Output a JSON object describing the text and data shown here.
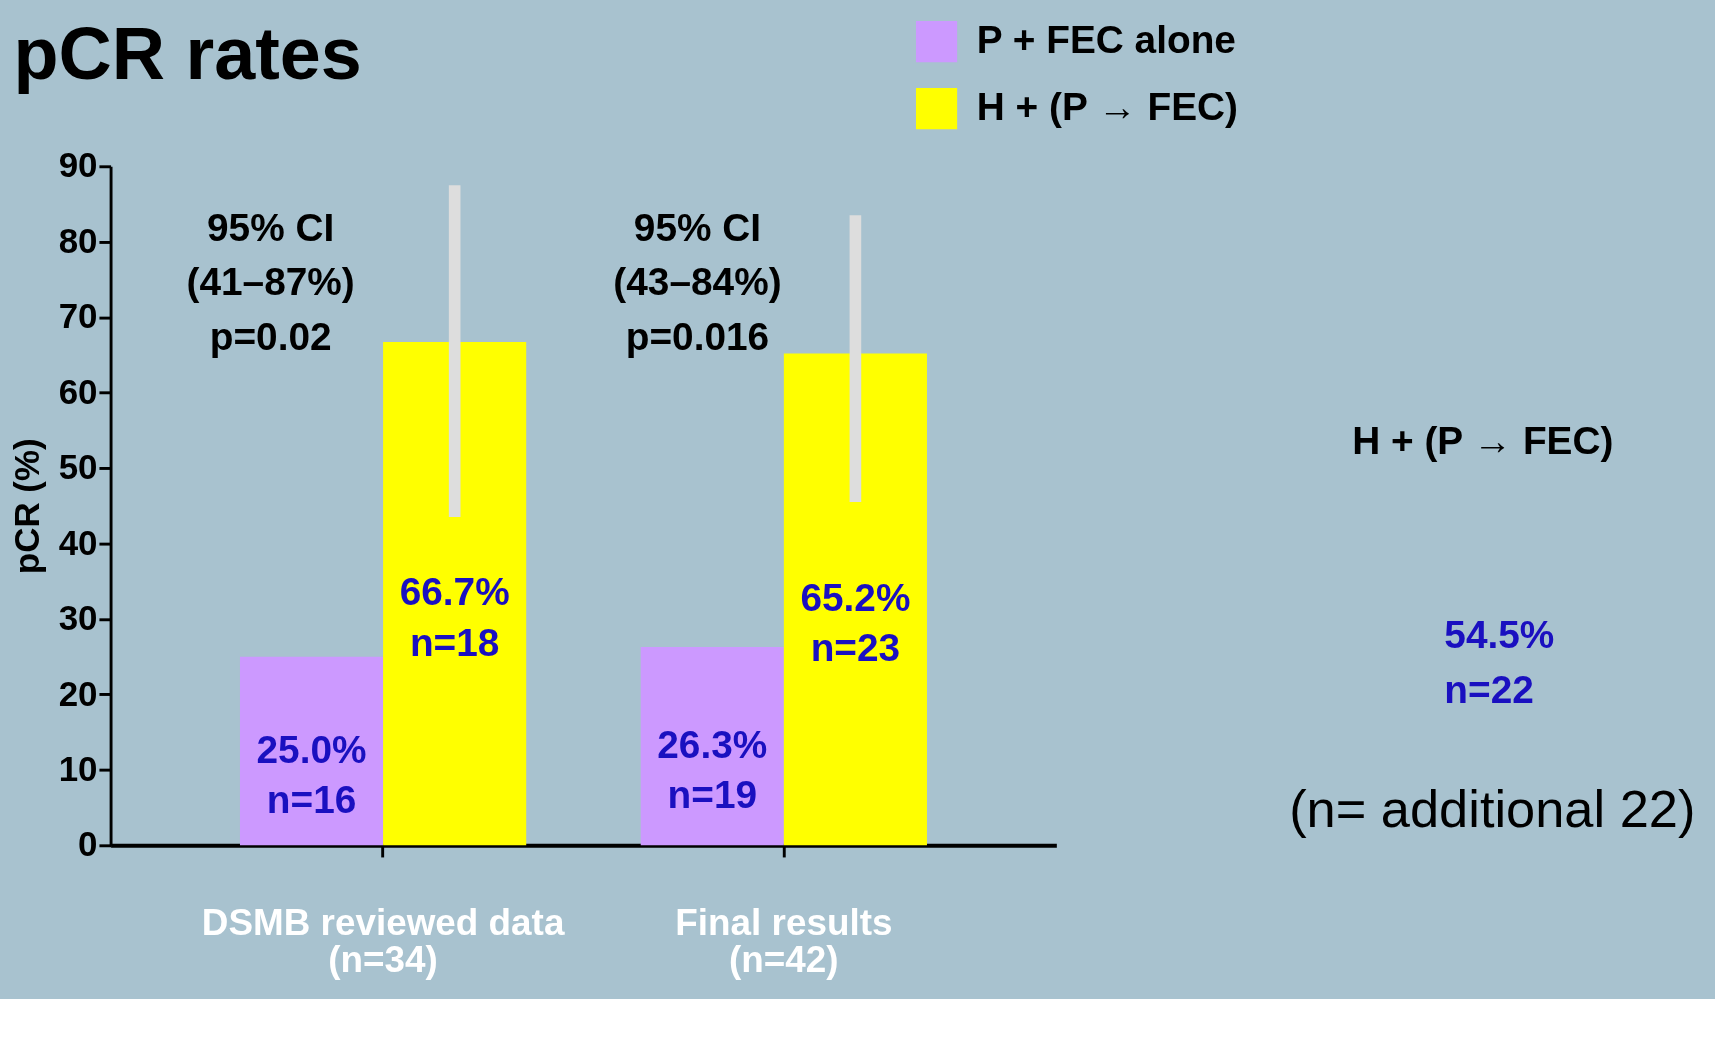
{
  "chart_data": {
    "type": "bar",
    "title": "pCR rates",
    "ylabel": "pCR (%)",
    "categories": [
      "DSMB reviewed data\n(n=34)",
      "Final results\n(n=42)"
    ],
    "series": [
      {
        "name": "P + FEC alone",
        "color": "#cc99ff",
        "values": [
          25.0,
          26.3
        ],
        "value_labels": [
          "25.0%\nn=16",
          "26.3%\nn=19"
        ]
      },
      {
        "name": "H + (P → FEC)",
        "color": "#ffff00",
        "values": [
          66.7,
          65.2
        ],
        "errors": [
          [
            43.5,
            87.5
          ],
          [
            45.5,
            83.5
          ]
        ],
        "value_labels": [
          "66.7%\nn=18",
          "65.2%\nn=23"
        ]
      }
    ],
    "ylim": [
      0,
      90
    ],
    "yticks": [
      0,
      10,
      20,
      30,
      40,
      50,
      60,
      70,
      80,
      90
    ],
    "grid": false,
    "legend": "top right",
    "annotations": [
      "95% CI\n(41–87%)\np=0.02",
      "95% CI\n(43–84%)\np=0.016",
      "H + (P → FEC)",
      "54.5%\nn=22",
      "(n= additional 22)"
    ]
  }
}
